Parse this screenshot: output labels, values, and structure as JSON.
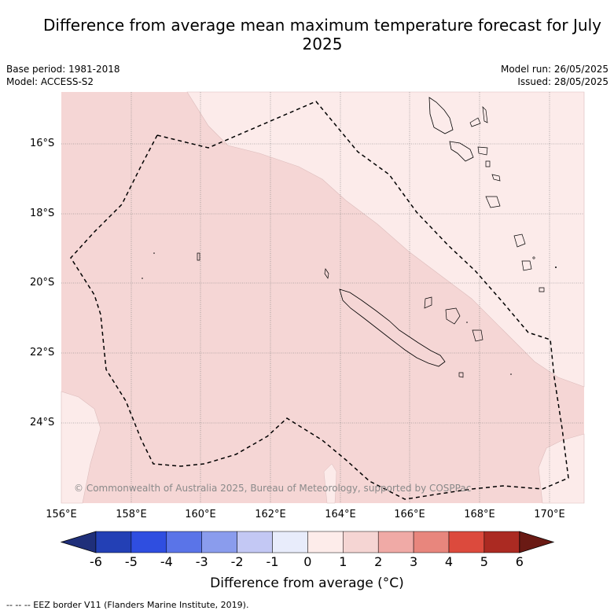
{
  "title": "Difference from average mean maximum temperature forecast for July 2025",
  "base_period": "Base period: 1981-2018",
  "model": "Model: ACCESS-S2",
  "model_run": "Model run: 26/05/2025",
  "issued": "Issued: 28/05/2025",
  "copyright": "© Commonwealth of Australia 2025, Bureau of Meteorology, supported by COSPPac",
  "footnote": "--  --  -- EEZ border V11 (Flanders Marine Institute, 2019).",
  "latitude_ticks": [
    "16°S",
    "18°S",
    "20°S",
    "22°S",
    "24°S"
  ],
  "longitude_ticks": [
    "156°E",
    "158°E",
    "160°E",
    "162°E",
    "164°E",
    "166°E",
    "168°E",
    "170°E"
  ],
  "colorbar": {
    "title": "Difference from average (°C)",
    "tick_labels": [
      "-6",
      "-5",
      "-4",
      "-3",
      "-2",
      "-1",
      "0",
      "1",
      "2",
      "3",
      "4",
      "5",
      "6"
    ],
    "colors": [
      "#1f2f7a",
      "#2340b5",
      "#2f4ee0",
      "#5a74e8",
      "#8a9ced",
      "#c3c8f4",
      "#e8ecfb",
      "#fdecea",
      "#f5d5d3",
      "#f0aaa6",
      "#e8867d",
      "#dc4a3d",
      "#ab2a22",
      "#6a1a14"
    ]
  },
  "map": {
    "fill_light": "#fcebea",
    "fill_medium": "#f5d6d5",
    "eez_border_color": "#000000"
  }
}
